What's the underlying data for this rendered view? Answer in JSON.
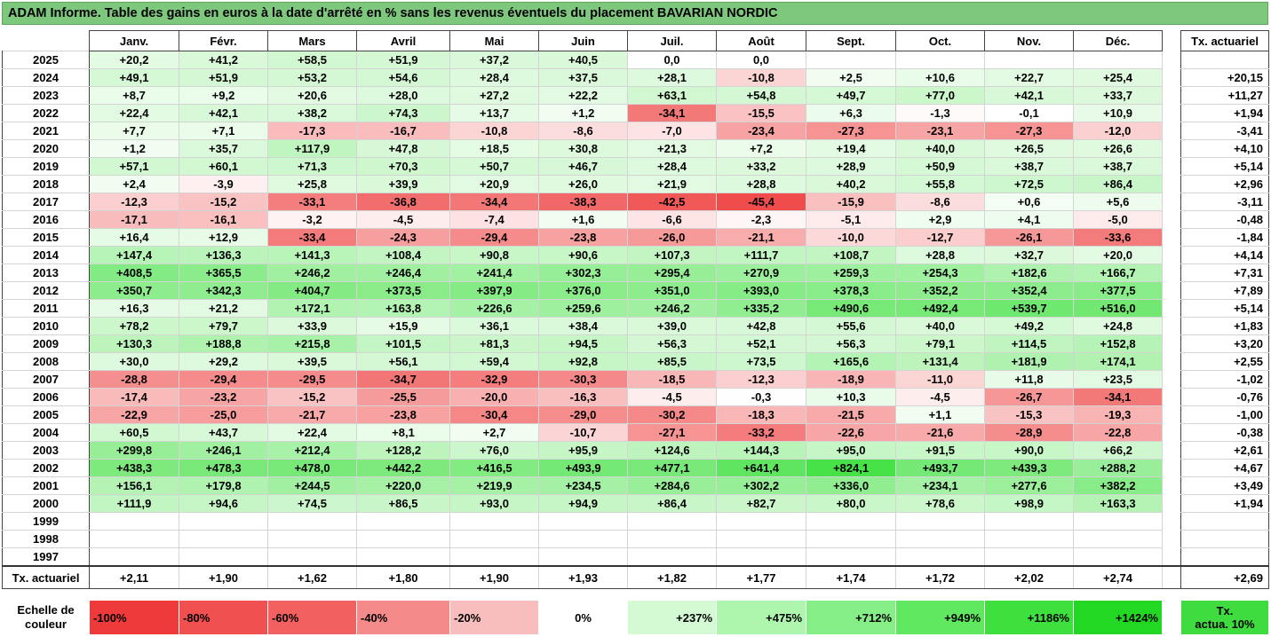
{
  "title": "ADAM Informe. Table des gains en euros à la date d'arrêté en % sans les revenus éventuels du placement BAVARIAN NORDIC",
  "months": [
    "Janv.",
    "Févr.",
    "Mars",
    "Avril",
    "Mai",
    "Juin",
    "Juil.",
    "Août",
    "Sept.",
    "Oct.",
    "Nov.",
    "Déc."
  ],
  "act_header": "Tx. actuariel",
  "rows": [
    {
      "year": "2025",
      "values": [
        "+20,2",
        "+41,2",
        "+58,5",
        "+51,9",
        "+37,2",
        "+40,5",
        "0,0",
        "0,0",
        "",
        "",
        "",
        ""
      ],
      "act": ""
    },
    {
      "year": "2024",
      "values": [
        "+49,1",
        "+51,9",
        "+53,2",
        "+54,6",
        "+28,4",
        "+37,5",
        "+28,1",
        "-10,8",
        "+2,5",
        "+10,6",
        "+22,7",
        "+25,4"
      ],
      "act": "+20,15"
    },
    {
      "year": "2023",
      "values": [
        "+8,7",
        "+9,2",
        "+20,6",
        "+28,0",
        "+27,2",
        "+22,2",
        "+63,1",
        "+54,8",
        "+49,7",
        "+77,0",
        "+42,1",
        "+33,7"
      ],
      "act": "+11,27"
    },
    {
      "year": "2022",
      "values": [
        "+22,4",
        "+42,1",
        "+38,2",
        "+74,3",
        "+13,7",
        "+1,2",
        "-34,1",
        "-15,5",
        "+6,3",
        "-1,3",
        "-0,1",
        "+10,9"
      ],
      "act": "+1,94"
    },
    {
      "year": "2021",
      "values": [
        "+7,7",
        "+7,1",
        "-17,3",
        "-16,7",
        "-10,8",
        "-8,6",
        "-7,0",
        "-23,4",
        "-27,3",
        "-23,1",
        "-27,3",
        "-12,0"
      ],
      "act": "-3,41"
    },
    {
      "year": "2020",
      "values": [
        "+1,2",
        "+35,7",
        "+117,9",
        "+47,8",
        "+18,5",
        "+30,8",
        "+21,3",
        "+7,2",
        "+19,4",
        "+40,0",
        "+26,5",
        "+26,6"
      ],
      "act": "+4,10"
    },
    {
      "year": "2019",
      "values": [
        "+57,1",
        "+60,1",
        "+71,3",
        "+70,3",
        "+50,7",
        "+46,7",
        "+28,4",
        "+33,2",
        "+28,9",
        "+50,9",
        "+38,7",
        "+38,7"
      ],
      "act": "+5,14"
    },
    {
      "year": "2018",
      "values": [
        "+2,4",
        "-3,9",
        "+25,8",
        "+39,9",
        "+20,9",
        "+26,0",
        "+21,9",
        "+28,8",
        "+40,2",
        "+55,8",
        "+72,5",
        "+86,4"
      ],
      "act": "+2,96"
    },
    {
      "year": "2017",
      "values": [
        "-12,3",
        "-15,2",
        "-33,1",
        "-36,8",
        "-34,4",
        "-38,3",
        "-42,5",
        "-45,4",
        "-15,9",
        "-8,6",
        "+0,6",
        "+5,6"
      ],
      "act": "-3,11"
    },
    {
      "year": "2016",
      "values": [
        "-17,1",
        "-16,1",
        "-3,2",
        "-4,5",
        "-7,4",
        "+1,6",
        "-6,6",
        "-2,3",
        "-5,1",
        "+2,9",
        "+4,1",
        "-5,0"
      ],
      "act": "-0,48"
    },
    {
      "year": "2015",
      "values": [
        "+16,4",
        "+12,9",
        "-33,4",
        "-24,3",
        "-29,4",
        "-23,8",
        "-26,0",
        "-21,1",
        "-10,0",
        "-12,7",
        "-26,1",
        "-33,6"
      ],
      "act": "-1,84"
    },
    {
      "year": "2014",
      "values": [
        "+147,4",
        "+136,3",
        "+141,3",
        "+108,4",
        "+90,8",
        "+90,6",
        "+107,3",
        "+111,7",
        "+108,7",
        "+28,8",
        "+32,7",
        "+20,0"
      ],
      "act": "+4,14"
    },
    {
      "year": "2013",
      "values": [
        "+408,5",
        "+365,5",
        "+246,2",
        "+246,4",
        "+241,4",
        "+302,3",
        "+295,4",
        "+270,9",
        "+259,3",
        "+254,3",
        "+182,6",
        "+166,7"
      ],
      "act": "+7,31"
    },
    {
      "year": "2012",
      "values": [
        "+350,7",
        "+342,3",
        "+404,7",
        "+373,5",
        "+397,9",
        "+376,0",
        "+351,0",
        "+393,0",
        "+378,3",
        "+352,2",
        "+352,4",
        "+377,5"
      ],
      "act": "+7,89"
    },
    {
      "year": "2011",
      "values": [
        "+16,3",
        "+21,2",
        "+172,1",
        "+163,8",
        "+226,6",
        "+259,6",
        "+246,2",
        "+335,2",
        "+490,6",
        "+492,4",
        "+539,7",
        "+516,0"
      ],
      "act": "+5,14"
    },
    {
      "year": "2010",
      "values": [
        "+78,2",
        "+79,7",
        "+33,9",
        "+15,9",
        "+36,1",
        "+38,4",
        "+39,0",
        "+42,8",
        "+55,6",
        "+40,0",
        "+49,2",
        "+24,8"
      ],
      "act": "+1,83"
    },
    {
      "year": "2009",
      "values": [
        "+130,3",
        "+188,8",
        "+215,8",
        "+101,5",
        "+81,3",
        "+94,5",
        "+56,3",
        "+52,1",
        "+56,3",
        "+79,1",
        "+114,5",
        "+152,8"
      ],
      "act": "+3,20"
    },
    {
      "year": "2008",
      "values": [
        "+30,0",
        "+29,2",
        "+39,5",
        "+56,1",
        "+59,4",
        "+92,8",
        "+85,5",
        "+73,5",
        "+165,6",
        "+131,4",
        "+181,9",
        "+174,1"
      ],
      "act": "+2,55"
    },
    {
      "year": "2007",
      "values": [
        "-28,8",
        "-29,4",
        "-29,5",
        "-34,7",
        "-32,9",
        "-30,3",
        "-18,5",
        "-12,3",
        "-18,9",
        "-11,0",
        "+11,8",
        "+23,5"
      ],
      "act": "-1,02"
    },
    {
      "year": "2006",
      "values": [
        "-17,4",
        "-23,2",
        "-15,2",
        "-25,5",
        "-20,0",
        "-16,3",
        "-4,5",
        "-0,3",
        "+10,3",
        "-4,5",
        "-26,7",
        "-34,1"
      ],
      "act": "-0,76"
    },
    {
      "year": "2005",
      "values": [
        "-22,9",
        "-25,0",
        "-21,7",
        "-23,8",
        "-30,4",
        "-29,0",
        "-30,2",
        "-18,3",
        "-21,5",
        "+1,1",
        "-15,3",
        "-19,3"
      ],
      "act": "-1,00"
    },
    {
      "year": "2004",
      "values": [
        "+60,5",
        "+43,7",
        "+22,4",
        "+8,1",
        "+2,7",
        "-10,7",
        "-27,1",
        "-33,2",
        "-22,6",
        "-21,6",
        "-28,9",
        "-22,8"
      ],
      "act": "-0,38"
    },
    {
      "year": "2003",
      "values": [
        "+299,8",
        "+246,1",
        "+212,4",
        "+128,2",
        "+76,0",
        "+95,9",
        "+124,6",
        "+144,3",
        "+95,0",
        "+91,5",
        "+90,0",
        "+66,2"
      ],
      "act": "+2,61"
    },
    {
      "year": "2002",
      "values": [
        "+438,3",
        "+478,3",
        "+478,0",
        "+442,2",
        "+416,5",
        "+493,9",
        "+477,1",
        "+641,4",
        "+824,1",
        "+493,7",
        "+439,3",
        "+288,2"
      ],
      "act": "+4,67"
    },
    {
      "year": "2001",
      "values": [
        "+156,1",
        "+179,8",
        "+244,5",
        "+220,0",
        "+219,9",
        "+234,5",
        "+284,6",
        "+302,2",
        "+336,0",
        "+234,1",
        "+277,6",
        "+382,2"
      ],
      "act": "+3,49"
    },
    {
      "year": "2000",
      "values": [
        "+111,9",
        "+94,6",
        "+74,5",
        "+86,5",
        "+93,0",
        "+94,9",
        "+86,4",
        "+82,7",
        "+80,0",
        "+78,6",
        "+98,9",
        "+163,3"
      ],
      "act": "+1,94"
    },
    {
      "year": "1999",
      "values": [
        "",
        "",
        "",
        "",
        "",
        "",
        "",
        "",
        "",
        "",
        "",
        ""
      ],
      "act": ""
    },
    {
      "year": "1998",
      "values": [
        "",
        "",
        "",
        "",
        "",
        "",
        "",
        "",
        "",
        "",
        "",
        ""
      ],
      "act": ""
    },
    {
      "year": "1997",
      "values": [
        "",
        "",
        "",
        "",
        "",
        "",
        "",
        "",
        "",
        "",
        "",
        ""
      ],
      "act": ""
    }
  ],
  "totals": {
    "label": "Tx. actuariel",
    "values": [
      "+2,11",
      "+1,90",
      "+1,62",
      "+1,80",
      "+1,90",
      "+1,93",
      "+1,82",
      "+1,77",
      "+1,74",
      "+1,72",
      "+2,02",
      "+2,74"
    ],
    "act": "+2,69"
  },
  "scale": {
    "label_line1": "Echelle de",
    "label_line2": "couleur",
    "steps": [
      {
        "label": "-100%",
        "color": "#ee3a3a"
      },
      {
        "label": "-80%",
        "color": "#f05050"
      },
      {
        "label": "-60%",
        "color": "#f26060"
      },
      {
        "label": "-40%",
        "color": "#f58a8a"
      },
      {
        "label": "-20%",
        "color": "#f8bebe"
      },
      {
        "label": "0%",
        "color": "#ffffff"
      },
      {
        "label": "+237%",
        "color": "#d4fad4"
      },
      {
        "label": "+475%",
        "color": "#aef5ae"
      },
      {
        "label": "+712%",
        "color": "#86ee86"
      },
      {
        "label": "+949%",
        "color": "#60e860"
      },
      {
        "label": "+1186%",
        "color": "#3ee03e"
      },
      {
        "label": "+1424%",
        "color": "#22d822"
      }
    ],
    "act_legend_line1": "Tx.",
    "act_legend_line2": "actua. 10%",
    "act_legend_color": "#3edc3e"
  },
  "colors": {
    "title_bg": "#7ec87e",
    "neg_max": "#ee3a3a",
    "pos_max": "#22d822"
  }
}
